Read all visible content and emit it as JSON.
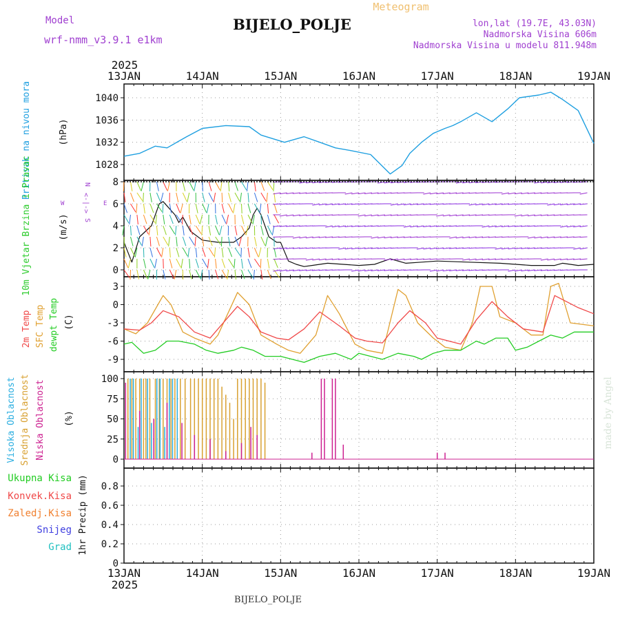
{
  "header": {
    "model_label": "Model",
    "model_name": "wrf-nmm_v3.9.1 e1km",
    "station": "BIJELO_POLJE",
    "meteogram": "Meteogram",
    "lonlat": "lon,lat (19.7E, 43.03N)",
    "altitude": "Nadmorska Visina 606m",
    "model_altitude": "Nadmorska Visina u modelu 811.948m",
    "year_top": "2025",
    "year_bottom": "2025",
    "footer_station": "BIJELO_POLJE",
    "credit": "made by Angel"
  },
  "colors": {
    "pressure": "#1e9fe0",
    "wind_label": "#2ecc2e",
    "temp2m": "#f04848",
    "sfc": "#e0a030",
    "dewpoint": "#22cc22",
    "cloud_high": "#2aaee0",
    "cloud_mid": "#d8a030",
    "cloud_low": "#cc2090",
    "model": "#a040d0",
    "meteogram": "#f0c070",
    "credit": "#d8e4d8"
  },
  "chart_data": [
    {
      "type": "line",
      "panel": "pressure",
      "title": "Pritisak na nivou mora",
      "ylabel": "(hPa)",
      "x_labels": [
        "13JAN",
        "14JAN",
        "15JAN",
        "16JAN",
        "17JAN",
        "18JAN",
        "19JAN"
      ],
      "x_unit": "days from 13JAN 00",
      "ylim": [
        1025.5,
        1041.5
      ],
      "yticks": [
        1028,
        1032,
        1036,
        1040
      ],
      "grid": true,
      "series": [
        {
          "name": "Pritisak na nivou mora",
          "x": [
            0,
            0.2,
            0.4,
            0.55,
            0.8,
            1.0,
            1.3,
            1.6,
            1.75,
            2.05,
            2.3,
            2.5,
            2.7,
            2.9,
            3.15,
            3.4,
            3.55,
            3.65,
            3.8,
            3.95,
            4.1,
            4.2,
            4.3,
            4.5,
            4.7,
            4.9,
            5.05,
            5.3,
            5.45,
            5.6,
            5.8,
            6.0
          ],
          "values": [
            1029.5,
            1030.0,
            1031.3,
            1031.0,
            1033.0,
            1034.5,
            1035.0,
            1034.8,
            1033.3,
            1032.0,
            1033.0,
            1032.0,
            1031.0,
            1030.5,
            1029.8,
            1026.3,
            1027.8,
            1030.0,
            1032.0,
            1033.6,
            1034.5,
            1035.0,
            1035.7,
            1037.3,
            1035.7,
            1038.0,
            1040.0,
            1040.5,
            1041.0,
            1039.7,
            1037.7,
            1031.8
          ]
        }
      ]
    },
    {
      "type": "line",
      "panel": "wind",
      "title": "10m Vjetar Brzina i Pravac",
      "ylabel": "(m/s)",
      "compass": "N",
      "compass_w": "W",
      "compass_e": "E",
      "compass_s": "S",
      "compass_arrow": "<-|->",
      "ylim": [
        -0.6,
        8
      ],
      "yticks": [
        0,
        2,
        4,
        6,
        8
      ],
      "grid": true,
      "series": [
        {
          "name": "Brzina",
          "x": [
            0,
            0.1,
            0.2,
            0.35,
            0.45,
            0.5,
            0.55,
            0.65,
            0.7,
            0.75,
            0.85,
            1.0,
            1.2,
            1.4,
            1.5,
            1.6,
            1.65,
            1.7,
            1.75,
            1.8,
            1.85,
            1.95,
            2.0,
            2.1,
            2.2,
            2.3,
            2.4,
            2.6,
            2.8,
            3.0,
            3.2,
            3.4,
            3.6,
            3.8,
            4.0,
            4.4,
            4.8,
            5.2,
            5.5,
            5.6,
            5.8,
            6.0
          ],
          "values": [
            2.5,
            0.7,
            3.0,
            4.0,
            6.0,
            6.2,
            5.8,
            5.0,
            4.3,
            4.8,
            3.5,
            2.7,
            2.5,
            2.5,
            3.0,
            3.8,
            5.0,
            5.6,
            5.0,
            4.0,
            3.0,
            2.5,
            2.5,
            0.8,
            0.5,
            0.3,
            0.4,
            0.6,
            0.5,
            0.4,
            0.5,
            1.0,
            0.6,
            0.7,
            0.8,
            0.7,
            0.6,
            0.4,
            0.4,
            0.6,
            0.4,
            0.5
          ]
        }
      ]
    },
    {
      "type": "line",
      "panel": "temperature",
      "ylabel": "(C)",
      "ylim": [
        -10.5,
        4
      ],
      "yticks": [
        3,
        0,
        -3,
        -6,
        -9
      ],
      "grid": true,
      "series": [
        {
          "name": "2m Temp",
          "x": [
            0,
            0.2,
            0.35,
            0.5,
            0.7,
            0.9,
            1.1,
            1.2,
            1.45,
            1.6,
            1.75,
            1.95,
            2.1,
            2.3,
            2.5,
            2.75,
            2.95,
            3.1,
            3.3,
            3.5,
            3.65,
            3.85,
            4.0,
            4.3,
            4.5,
            4.7,
            4.9,
            5.1,
            5.35,
            5.5,
            5.8,
            6.0
          ],
          "values": [
            -4.0,
            -4.2,
            -3.0,
            -1.0,
            -2.0,
            -4.5,
            -5.5,
            -4.0,
            -0.3,
            -2.0,
            -4.5,
            -5.5,
            -5.8,
            -4.0,
            -1.2,
            -3.5,
            -5.5,
            -6.0,
            -6.3,
            -3.0,
            -1.0,
            -3.0,
            -5.5,
            -6.5,
            -2.5,
            0.5,
            -2.0,
            -4.0,
            -4.5,
            1.5,
            -0.5,
            -1.5
          ]
        },
        {
          "name": "SFC Temp",
          "x": [
            0,
            0.15,
            0.3,
            0.5,
            0.6,
            0.75,
            0.9,
            1.1,
            1.2,
            1.45,
            1.6,
            1.75,
            1.95,
            2.1,
            2.25,
            2.45,
            2.6,
            2.75,
            2.95,
            3.1,
            3.3,
            3.5,
            3.6,
            3.75,
            3.95,
            4.1,
            4.3,
            4.45,
            4.55,
            4.7,
            4.8,
            5.0,
            5.2,
            5.35,
            5.45,
            5.55,
            5.7,
            6.0
          ],
          "values": [
            -4.0,
            -4.8,
            -3.0,
            1.5,
            0.0,
            -4.5,
            -5.5,
            -6.5,
            -5.0,
            2.0,
            0.0,
            -5.0,
            -6.5,
            -7.5,
            -8.0,
            -5.0,
            1.5,
            -1.5,
            -6.5,
            -7.5,
            -8.0,
            2.5,
            1.5,
            -3.0,
            -5.5,
            -7.0,
            -7.5,
            -3.0,
            3.0,
            3.0,
            -2.0,
            -3.0,
            -5.0,
            -5.0,
            3.0,
            3.5,
            -3.0,
            -3.5
          ]
        },
        {
          "name": "dewpt Temp",
          "x": [
            0,
            0.1,
            0.25,
            0.4,
            0.55,
            0.7,
            0.9,
            1.05,
            1.2,
            1.4,
            1.5,
            1.65,
            1.8,
            2.0,
            2.15,
            2.3,
            2.5,
            2.7,
            2.9,
            3.0,
            3.15,
            3.3,
            3.5,
            3.7,
            3.8,
            3.95,
            4.1,
            4.3,
            4.5,
            4.6,
            4.75,
            4.9,
            5.0,
            5.15,
            5.3,
            5.45,
            5.6,
            5.75,
            6.0
          ],
          "values": [
            -6.5,
            -6.2,
            -8.0,
            -7.5,
            -6.0,
            -6.0,
            -6.5,
            -7.5,
            -8.0,
            -7.5,
            -7.0,
            -7.5,
            -8.5,
            -8.5,
            -9.0,
            -9.5,
            -8.5,
            -8.0,
            -9.0,
            -8.0,
            -8.5,
            -9.0,
            -8.0,
            -8.5,
            -9.0,
            -8.0,
            -7.5,
            -7.5,
            -6.0,
            -6.5,
            -5.5,
            -5.5,
            -7.5,
            -7.0,
            -6.0,
            -5.0,
            -5.5,
            -4.5,
            -4.5
          ]
        }
      ]
    },
    {
      "type": "bar",
      "panel": "clouds",
      "ylabel": "(%)",
      "ylim": [
        0,
        100
      ],
      "yticks": [
        0,
        25,
        50,
        75,
        100
      ],
      "grid": true,
      "series": [
        {
          "name": "Visoka Oblacnost",
          "x": [
            0.08,
            0.12,
            0.18,
            0.22,
            0.3,
            0.35,
            0.42,
            0.46,
            0.52,
            0.58,
            0.62,
            0.68
          ],
          "values": [
            100,
            100,
            40,
            100,
            100,
            45,
            100,
            100,
            40,
            100,
            100,
            100
          ]
        },
        {
          "name": "Srednja Oblacnost",
          "x": [
            0.05,
            0.1,
            0.15,
            0.2,
            0.25,
            0.28,
            0.33,
            0.4,
            0.45,
            0.5,
            0.55,
            0.6,
            0.65,
            0.72,
            0.78,
            0.85,
            0.9,
            0.95,
            1.0,
            1.05,
            1.1,
            1.15,
            1.2,
            1.25,
            1.3,
            1.35,
            1.4,
            1.45,
            1.5,
            1.55,
            1.6,
            1.65,
            1.7,
            1.75,
            1.8
          ],
          "values": [
            100,
            100,
            100,
            100,
            100,
            100,
            100,
            100,
            100,
            100,
            100,
            100,
            100,
            100,
            100,
            100,
            100,
            100,
            100,
            100,
            100,
            100,
            100,
            90,
            80,
            70,
            50,
            100,
            100,
            100,
            100,
            100,
            100,
            100,
            95
          ]
        },
        {
          "name": "Niska Oblacnost",
          "x": [
            0.02,
            0.2,
            0.38,
            0.55,
            0.74,
            0.9,
            1.1,
            1.3,
            1.5,
            1.62,
            1.7,
            2.4,
            2.52,
            2.56,
            2.66,
            2.7,
            2.8,
            4.0,
            4.1
          ],
          "values": [
            95,
            60,
            50,
            70,
            45,
            30,
            25,
            10,
            20,
            40,
            30,
            8,
            100,
            100,
            100,
            100,
            18,
            8,
            8
          ]
        }
      ]
    },
    {
      "type": "bar",
      "panel": "precipitation",
      "ylabel": "1hr Precip (mm)",
      "ylim": [
        0,
        1
      ],
      "yticks": [
        0,
        0.2,
        0.4,
        0.6,
        0.8
      ],
      "ytick_labels": [
        "0",
        "0.2",
        "0.4",
        "0.6",
        "0.8"
      ],
      "grid": true,
      "series": [
        {
          "name": "Ukupna Kisa",
          "values": []
        },
        {
          "name": "Konvek.Kisa",
          "values": []
        },
        {
          "name": "Zaledj.Kisa",
          "values": []
        },
        {
          "name": "Snijeg",
          "values": []
        },
        {
          "name": "Grad",
          "values": []
        }
      ]
    }
  ]
}
